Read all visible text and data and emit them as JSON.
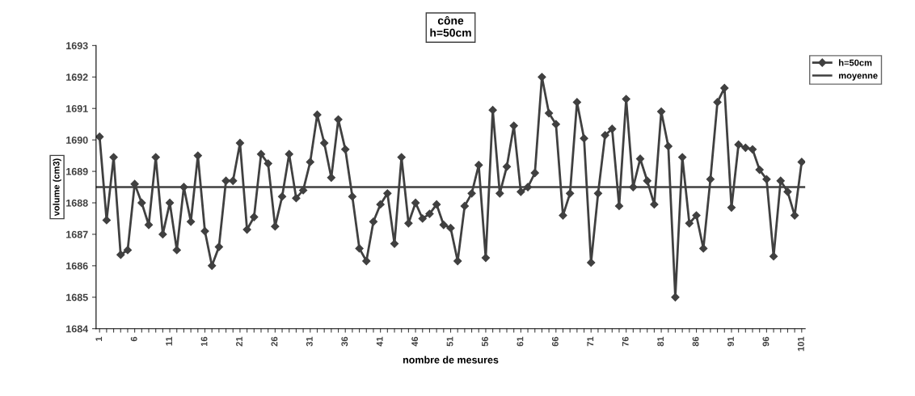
{
  "chart_data": {
    "type": "line",
    "title": "cône\nh=50cm",
    "xlabel": "nombre de mesures",
    "ylabel": "volume (cm3)",
    "categories": [
      "1",
      null,
      null,
      null,
      null,
      "6",
      null,
      null,
      null,
      null,
      "11",
      null,
      null,
      null,
      null,
      "16",
      null,
      null,
      null,
      null,
      "21",
      null,
      null,
      null,
      null,
      "26",
      null,
      null,
      null,
      null,
      "31",
      null,
      null,
      null,
      null,
      "36",
      null,
      null,
      null,
      null,
      "41",
      null,
      null,
      null,
      null,
      "46",
      null,
      null,
      null,
      null,
      "51",
      null,
      null,
      null,
      null,
      "56",
      null,
      null,
      null,
      null,
      "61",
      null,
      null,
      null,
      null,
      "66",
      null,
      null,
      null,
      null,
      "71",
      null,
      null,
      null,
      null,
      "76",
      null,
      null,
      null,
      null,
      "81",
      null,
      null,
      null,
      null,
      "86",
      null,
      null,
      null,
      null,
      "91",
      null,
      null,
      null,
      null,
      "96",
      null,
      null,
      null,
      null,
      "101"
    ],
    "series": [
      {
        "name": "h=50cm",
        "color": "#404040",
        "values": [
          1690.1,
          1687.45,
          1689.45,
          1686.35,
          1686.5,
          1688.6,
          1688.0,
          1687.3,
          1689.45,
          1687.0,
          1688.0,
          1686.5,
          1688.5,
          1687.4,
          1689.5,
          1687.1,
          1686.0,
          1686.6,
          1688.7,
          1688.7,
          1689.9,
          1687.15,
          1687.55,
          1689.55,
          1689.25,
          1687.25,
          1688.2,
          1689.55,
          1688.15,
          1688.4,
          1689.3,
          1690.8,
          1689.9,
          1688.8,
          1690.65,
          1689.7,
          1688.2,
          1686.55,
          1686.15,
          1687.4,
          1687.95,
          1688.3,
          1686.7,
          1689.45,
          1687.35,
          1688.0,
          1687.5,
          1687.65,
          1687.95,
          1687.3,
          1687.2,
          1686.15,
          1687.9,
          1688.3,
          1689.2,
          1686.25,
          1690.95,
          1688.3,
          1689.15,
          1690.45,
          1688.35,
          1688.5,
          1688.95,
          1692.0,
          1690.85,
          1690.5,
          1687.6,
          1688.3,
          1691.2,
          1690.05,
          1686.1,
          1688.3,
          1690.15,
          1690.35,
          1687.9,
          1691.3,
          1688.5,
          1689.4,
          1688.7,
          1687.95,
          1690.9,
          1689.8,
          1685.0,
          1689.45,
          1687.35,
          1687.6,
          1686.55,
          1688.75,
          1691.2,
          1691.65,
          1687.85,
          1689.85,
          1689.75,
          1689.7,
          1689.05,
          1688.75,
          1686.3,
          1688.7,
          1688.35,
          1687.6,
          1689.3
        ]
      }
    ],
    "ref_lines": [
      {
        "axis": "y",
        "value": 1688.5,
        "label": "moyenne",
        "color": "#404040",
        "line_style": "solid"
      }
    ],
    "ylim": [
      1684,
      1693
    ],
    "yticks": [
      1684,
      1685,
      1686,
      1687,
      1688,
      1689,
      1690,
      1691,
      1692,
      1693
    ],
    "marker": "diamond",
    "line_style": "solid",
    "grid": false,
    "legend": "top right"
  }
}
